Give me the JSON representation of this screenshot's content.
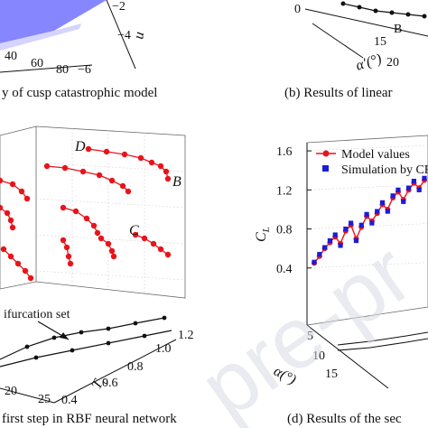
{
  "captions": {
    "a": "y of cusp catastrophic model",
    "b": "(b) Results of linear",
    "c": "first step in RBF neural network",
    "d": "(d) Results of the sec"
  },
  "watermark": "pre-pr",
  "panel_a": {
    "u_label": "u",
    "u_ticks": [
      "−2",
      "−4",
      "−6"
    ],
    "x_ticks": [
      "40",
      "60",
      "80"
    ],
    "surface_color": "#7f7fff"
  },
  "panel_b": {
    "z_tick": "0",
    "x_ticks": [
      "15",
      "20"
    ],
    "x_label": "α′(°)",
    "point_label": "B"
  },
  "panel_c": {
    "point_labels": [
      "D",
      "B",
      "C"
    ],
    "annotation": "ifurcation set",
    "x_ticks": [
      "20",
      "25"
    ],
    "y_ticks": [
      "1.2",
      "1.0",
      "0.8",
      "0.6",
      "0.4"
    ],
    "y_label": "T",
    "y_label_sub": "c",
    "series_color": "#e8141b"
  },
  "chart_data": {
    "type": "line",
    "title": "",
    "ylabel": "C",
    "ylabel_sub": "L",
    "xlabel": "α(°)",
    "yticks": [
      "1.6",
      "1.2",
      "0.8",
      "0.4"
    ],
    "ylim": [
      0.0,
      1.6
    ],
    "series": [
      {
        "name": "Model values",
        "color": "#e8141b",
        "values": [
          0.45,
          0.52,
          0.6,
          0.66,
          0.72,
          0.65,
          0.78,
          0.84,
          0.7,
          0.82,
          0.93,
          0.88,
          0.96,
          1.05,
          1.0,
          1.12,
          1.18,
          1.1,
          1.2,
          1.27,
          1.22,
          1.3
        ]
      },
      {
        "name": "Simulation by CF",
        "color": "#1c1cd6",
        "values": [
          0.46,
          0.54,
          0.61,
          0.68,
          0.74,
          0.63,
          0.8,
          0.86,
          0.68,
          0.84,
          0.95,
          0.86,
          0.98,
          1.07,
          0.98,
          1.14,
          1.2,
          1.08,
          1.22,
          1.29,
          1.2,
          1.32
        ]
      }
    ]
  }
}
